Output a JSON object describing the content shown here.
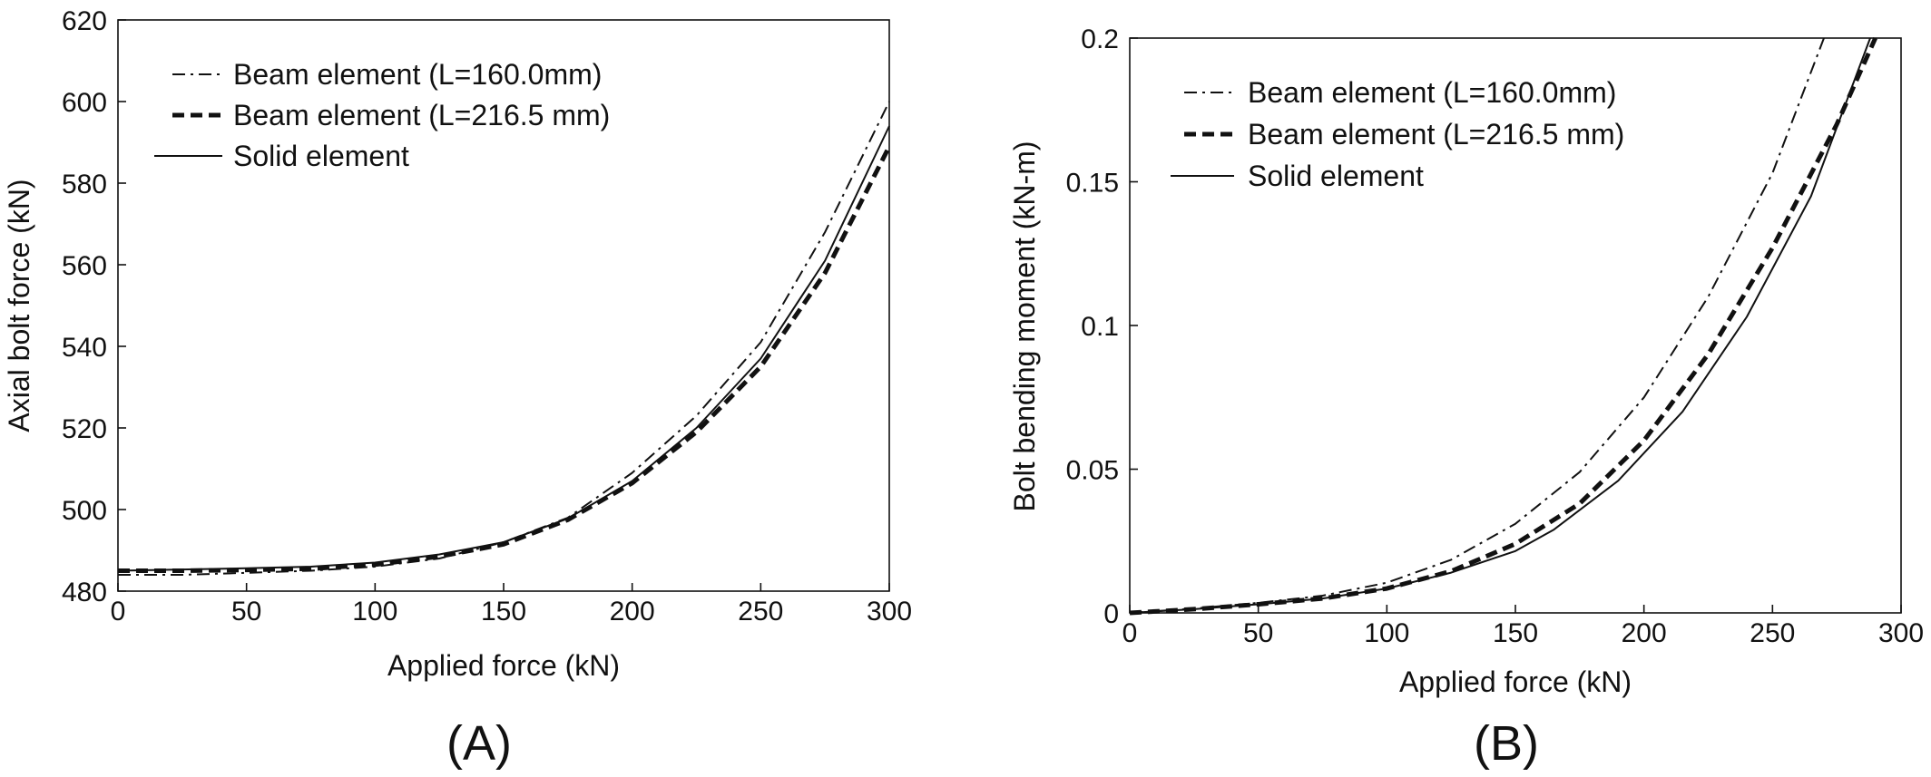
{
  "chart_data": [
    {
      "type": "line",
      "panel_label": "(A)",
      "xlabel": "Applied force (kN)",
      "ylabel": "Axial bolt force (kN)",
      "xlim": [
        0,
        300
      ],
      "ylim": [
        480,
        620
      ],
      "xticks": [
        0,
        50,
        100,
        150,
        200,
        250,
        300
      ],
      "yticks": [
        480,
        500,
        520,
        540,
        560,
        580,
        600,
        620
      ],
      "grid": false,
      "legend_position": "top-left",
      "series": [
        {
          "name": "Beam element (L=160.0mm)",
          "style": "dash-dot-thin",
          "x": [
            0,
            25,
            50,
            75,
            100,
            125,
            150,
            175,
            200,
            225,
            250,
            275,
            300
          ],
          "y": [
            484,
            484,
            484.5,
            485,
            486,
            488,
            492,
            498,
            509,
            523,
            541,
            568,
            600
          ]
        },
        {
          "name": "Beam element (L=216.5 mm)",
          "style": "dashed-thick",
          "x": [
            0,
            25,
            50,
            75,
            100,
            125,
            150,
            175,
            200,
            225,
            250,
            275,
            300
          ],
          "y": [
            485,
            485,
            485.2,
            485.5,
            486.5,
            488.5,
            491.5,
            497.5,
            506.5,
            519,
            535,
            558,
            589
          ]
        },
        {
          "name": "Solid element",
          "style": "solid",
          "x": [
            0,
            25,
            50,
            75,
            100,
            125,
            150,
            175,
            200,
            225,
            250,
            275,
            300
          ],
          "y": [
            485,
            485.3,
            485.6,
            486,
            487,
            489,
            492,
            497.8,
            507,
            520,
            537,
            561,
            594
          ]
        }
      ]
    },
    {
      "type": "line",
      "panel_label": "(B)",
      "xlabel": "Applied force (kN)",
      "ylabel": "Bolt bending moment (kN-m)",
      "xlim": [
        0,
        300
      ],
      "ylim": [
        0,
        0.2
      ],
      "xticks": [
        0,
        50,
        100,
        150,
        200,
        250,
        300
      ],
      "yticks": [
        0,
        0.05,
        0.1,
        0.15,
        0.2
      ],
      "ytick_labels": [
        "0",
        "0.05",
        "0.1",
        "0.15",
        "0.2"
      ],
      "grid": false,
      "legend_position": "top-left",
      "series": [
        {
          "name": "Beam element (L=160.0mm)",
          "style": "dash-dot-thin",
          "x": [
            0,
            25,
            50,
            75,
            100,
            125,
            150,
            175,
            200,
            225,
            250,
            270
          ],
          "y": [
            0,
            0.0015,
            0.0035,
            0.006,
            0.0105,
            0.0185,
            0.031,
            0.049,
            0.075,
            0.11,
            0.153,
            0.2
          ]
        },
        {
          "name": "Beam element (L=216.5 mm)",
          "style": "dashed-thick",
          "x": [
            0,
            25,
            50,
            75,
            100,
            125,
            150,
            175,
            200,
            225,
            250,
            275,
            290
          ],
          "y": [
            0,
            0.0013,
            0.003,
            0.005,
            0.0085,
            0.0145,
            0.024,
            0.038,
            0.06,
            0.09,
            0.127,
            0.17,
            0.2
          ]
        },
        {
          "name": "Solid element",
          "style": "solid",
          "x": [
            0,
            25,
            50,
            75,
            100,
            125,
            150,
            165,
            190,
            215,
            240,
            265,
            288
          ],
          "y": [
            0,
            0.0013,
            0.003,
            0.005,
            0.0085,
            0.014,
            0.0215,
            0.029,
            0.046,
            0.07,
            0.103,
            0.145,
            0.2
          ]
        }
      ]
    }
  ]
}
